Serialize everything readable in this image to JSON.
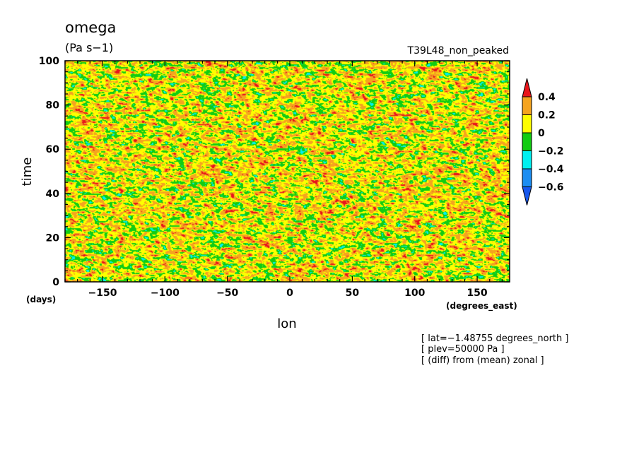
{
  "chart_data": {
    "type": "heatmap",
    "title": "omega",
    "units": "(Pa s−1)",
    "experiment": "T39L48_non_peaked",
    "xlabel": "lon",
    "ylabel": "time",
    "x_units_label": "(degrees_east)",
    "y_units_label": "(days)",
    "xlim": [
      -180,
      176
    ],
    "ylim": [
      0,
      100
    ],
    "x_ticks": [
      -150,
      -100,
      -50,
      0,
      50,
      100,
      150
    ],
    "x_tick_labels": [
      "−150",
      "−100",
      "−50",
      "0",
      "50",
      "100",
      "150"
    ],
    "y_ticks": [
      0,
      20,
      40,
      60,
      80,
      100
    ],
    "y_tick_labels": [
      "0",
      "20",
      "40",
      "60",
      "80",
      "100"
    ],
    "grid": false,
    "colorbar": {
      "levels": [
        0.4,
        0.2,
        0,
        -0.2,
        -0.4,
        -0.6
      ],
      "level_labels": [
        "0.4",
        "0.2",
        "0",
        "−0.2",
        "−0.4",
        "−0.6"
      ],
      "colors_top_to_bottom": [
        "#e8141a",
        "#f5a41f",
        "#fefe00",
        "#12cc12",
        "#00f0f0",
        "#1c8ef2",
        "#1658ee"
      ]
    },
    "annotations": [
      "[ lat=−1.48755 degrees_north ]",
      "[ plev=50000 Pa ]",
      "[ (diff) from (mean) zonal ]"
    ],
    "field_description_note": "Zonal anomaly of omega, mostly weakly positive (yellow/orange) with eastward-propagating negative (blue) streaks."
  }
}
